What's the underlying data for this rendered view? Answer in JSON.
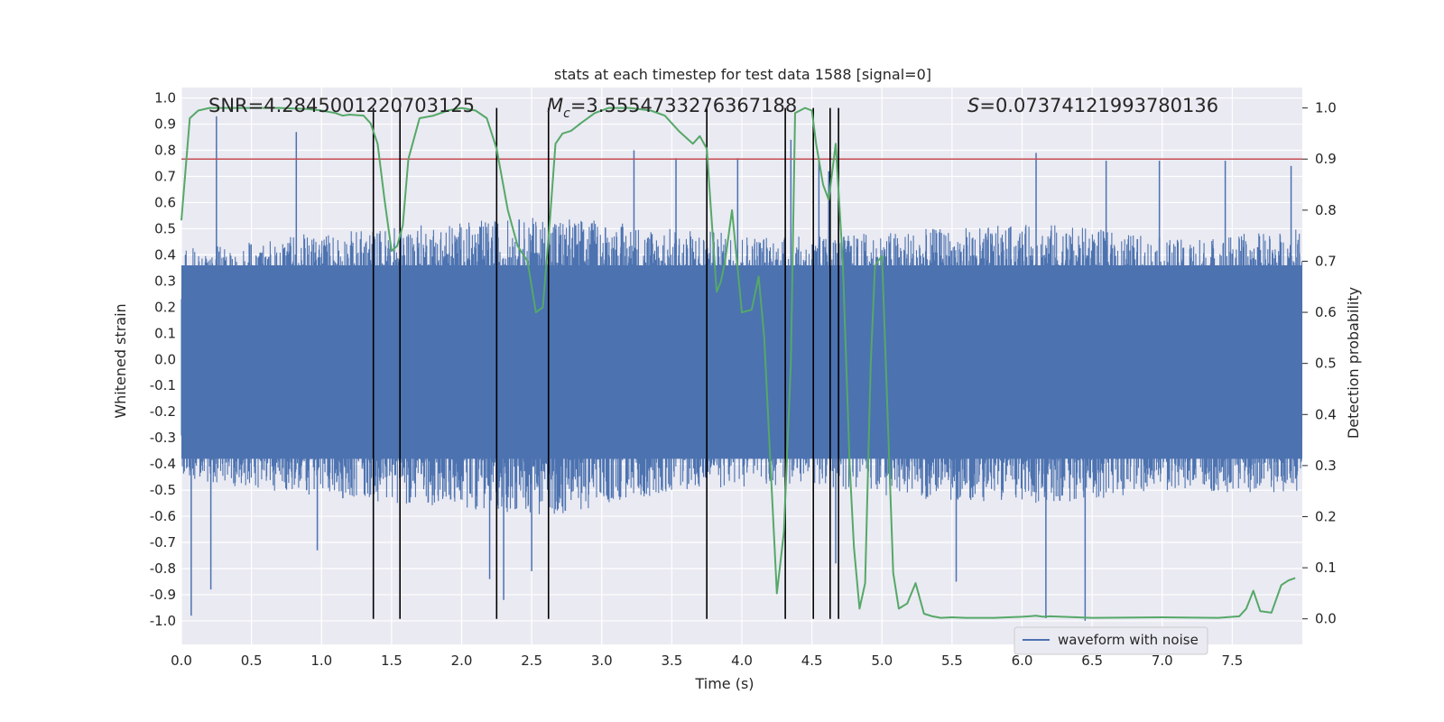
{
  "chart_data": {
    "type": "line",
    "title": "stats at each timestep for test data 1588 [signal=0]",
    "xlabel": "Time (s)",
    "ylabel_left": "Whitened strain",
    "ylabel_right": "Detection probability",
    "xlim": [
      0.0,
      8.0
    ],
    "ylim_left": [
      -1.09,
      1.04
    ],
    "ylim_right": [
      -0.05,
      1.04
    ],
    "x_ticks": [
      "0.0",
      "0.5",
      "1.0",
      "1.5",
      "2.0",
      "2.5",
      "3.0",
      "3.5",
      "4.0",
      "4.5",
      "5.0",
      "5.5",
      "6.0",
      "6.5",
      "7.0",
      "7.5"
    ],
    "y_left_ticks": [
      "1.0",
      "0.9",
      "0.8",
      "0.7",
      "0.6",
      "0.5",
      "0.4",
      "0.3",
      "0.2",
      "0.1",
      "0.0",
      "-0.1",
      "-0.2",
      "-0.3",
      "-0.4",
      "-0.5",
      "-0.6",
      "-0.7",
      "-0.8",
      "-0.9",
      "-1.0"
    ],
    "y_right_ticks": [
      "1.0",
      "0.9",
      "0.8",
      "0.7",
      "0.6",
      "0.5",
      "0.4",
      "0.3",
      "0.2",
      "0.1",
      "0.0"
    ],
    "annotations": {
      "snr": "SNR=4.2845001220703125",
      "mc_symbol": "M",
      "mc_sub": "c",
      "mc_value": "=3.5554733276367188",
      "s_symbol": "S",
      "s_value": "=0.07374121993780136"
    },
    "legend": {
      "label": "waveform with noise",
      "position": "lower-right"
    },
    "threshold": 0.9,
    "colors": {
      "waveform": "#4c72b0",
      "probability": "#55a868",
      "threshold": "#c44e52",
      "markers": "#000000",
      "axes_bg": "#eaeaf2",
      "grid": "#ffffff"
    },
    "marker_times": [
      1.37,
      1.56,
      2.25,
      2.62,
      3.75,
      4.31,
      4.51,
      4.63,
      4.69
    ],
    "waveform": {
      "name": "waveform with noise",
      "envelope_upper": [
        0.42,
        0.48,
        0.52,
        0.55,
        0.5,
        0.47,
        0.5,
        0.52,
        0.46,
        0.5
      ],
      "envelope_lower": [
        -0.46,
        -0.52,
        -0.56,
        -0.6,
        -0.5,
        -0.48,
        -0.54,
        -0.55,
        -0.5,
        -0.52
      ],
      "spikes": [
        {
          "x": 0.07,
          "y": -0.98
        },
        {
          "x": 0.21,
          "y": -0.88
        },
        {
          "x": 0.25,
          "y": 0.93
        },
        {
          "x": 0.82,
          "y": 0.87
        },
        {
          "x": 0.97,
          "y": -0.73
        },
        {
          "x": 2.2,
          "y": -0.84
        },
        {
          "x": 2.3,
          "y": -0.92
        },
        {
          "x": 2.5,
          "y": -0.81
        },
        {
          "x": 3.23,
          "y": 0.8
        },
        {
          "x": 3.53,
          "y": 0.77
        },
        {
          "x": 3.97,
          "y": 0.77
        },
        {
          "x": 4.35,
          "y": 0.84
        },
        {
          "x": 4.55,
          "y": 0.77
        },
        {
          "x": 4.62,
          "y": 0.72
        },
        {
          "x": 4.67,
          "y": -0.78
        },
        {
          "x": 5.53,
          "y": -0.85
        },
        {
          "x": 6.17,
          "y": -0.99
        },
        {
          "x": 6.45,
          "y": -1.0
        },
        {
          "x": 6.1,
          "y": 0.79
        },
        {
          "x": 6.6,
          "y": 0.76
        },
        {
          "x": 6.98,
          "y": 0.76
        },
        {
          "x": 7.45,
          "y": 0.76
        },
        {
          "x": 7.92,
          "y": 0.74
        }
      ]
    },
    "probability": {
      "name": "detection probability",
      "x": [
        0.0,
        0.06,
        0.12,
        0.2,
        0.35,
        0.5,
        0.7,
        0.9,
        1.0,
        1.1,
        1.15,
        1.2,
        1.3,
        1.35,
        1.4,
        1.45,
        1.5,
        1.54,
        1.58,
        1.62,
        1.7,
        1.8,
        1.9,
        2.0,
        2.1,
        2.18,
        2.25,
        2.33,
        2.4,
        2.47,
        2.53,
        2.58,
        2.63,
        2.67,
        2.72,
        2.78,
        2.85,
        2.95,
        3.05,
        3.2,
        3.35,
        3.45,
        3.55,
        3.65,
        3.7,
        3.75,
        3.78,
        3.82,
        3.85,
        3.88,
        3.93,
        4.0,
        4.07,
        4.12,
        4.16,
        4.25,
        4.3,
        4.35,
        4.38,
        4.45,
        4.5,
        4.53,
        4.58,
        4.62,
        4.67,
        4.72,
        4.77,
        4.8,
        4.84,
        4.88,
        4.92,
        4.95,
        4.97,
        5.0,
        5.08,
        5.12,
        5.18,
        5.24,
        5.3,
        5.36,
        5.42,
        5.5,
        5.6,
        5.8,
        6.0,
        6.1,
        6.15,
        6.2,
        6.5,
        7.0,
        7.4,
        7.55,
        7.6,
        7.65,
        7.7,
        7.78,
        7.85,
        7.9,
        7.95
      ],
      "y": [
        0.78,
        0.98,
        0.995,
        1.0,
        1.0,
        1.0,
        1.0,
        0.998,
        0.995,
        0.99,
        0.985,
        0.987,
        0.985,
        0.97,
        0.93,
        0.82,
        0.72,
        0.73,
        0.77,
        0.9,
        0.98,
        0.985,
        0.995,
        1.0,
        0.995,
        0.98,
        0.92,
        0.8,
        0.73,
        0.7,
        0.6,
        0.61,
        0.78,
        0.93,
        0.95,
        0.955,
        0.97,
        0.99,
        1.0,
        1.0,
        0.995,
        0.985,
        0.955,
        0.93,
        0.945,
        0.92,
        0.8,
        0.64,
        0.66,
        0.7,
        0.8,
        0.6,
        0.605,
        0.67,
        0.55,
        0.05,
        0.17,
        0.5,
        0.99,
        1.0,
        0.995,
        0.93,
        0.85,
        0.82,
        0.93,
        0.7,
        0.3,
        0.14,
        0.02,
        0.07,
        0.5,
        0.69,
        0.7,
        0.71,
        0.09,
        0.02,
        0.03,
        0.07,
        0.01,
        0.005,
        0.002,
        0.003,
        0.002,
        0.002,
        0.004,
        0.006,
        0.004,
        0.005,
        0.002,
        0.003,
        0.002,
        0.005,
        0.02,
        0.055,
        0.015,
        0.012,
        0.066,
        0.075,
        0.08
      ]
    }
  }
}
